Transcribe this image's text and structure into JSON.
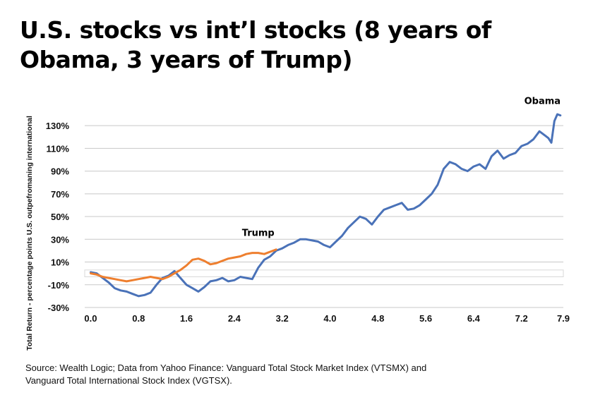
{
  "chart_data": {
    "type": "line",
    "title": "U.S. stocks vs int’l stocks (8 years of Obama, 3 years of Trump)",
    "ylabel": "Total Return - percentage points U.S. outpefromaning international",
    "xlabel": "",
    "ylim": [
      -30,
      140
    ],
    "xlim": [
      -0.1,
      7.9
    ],
    "y_ticks": [
      -30,
      -10,
      10,
      30,
      50,
      70,
      90,
      110,
      130
    ],
    "y_tick_labels": [
      "-30%",
      "-10%",
      "10%",
      "30%",
      "50%",
      "70%",
      "90%",
      "110%",
      "130%"
    ],
    "x_ticks": [
      0.0,
      0.8,
      1.6,
      2.4,
      3.2,
      4.0,
      4.8,
      5.6,
      6.4,
      7.2,
      7.9
    ],
    "x_tick_labels": [
      "0.0",
      "0.8",
      "1.6",
      "2.4",
      "3.2",
      "4.0",
      "4.8",
      "5.6",
      "6.4",
      "7.2",
      "7.9"
    ],
    "grid": true,
    "series": [
      {
        "name": "Obama",
        "color": "#4a72b8",
        "x": [
          0.0,
          0.1,
          0.2,
          0.3,
          0.4,
          0.5,
          0.6,
          0.7,
          0.8,
          0.9,
          1.0,
          1.1,
          1.2,
          1.3,
          1.4,
          1.5,
          1.6,
          1.7,
          1.8,
          1.9,
          2.0,
          2.1,
          2.2,
          2.3,
          2.4,
          2.5,
          2.6,
          2.7,
          2.8,
          2.9,
          3.0,
          3.1,
          3.2,
          3.3,
          3.4,
          3.5,
          3.6,
          3.7,
          3.8,
          3.9,
          4.0,
          4.1,
          4.2,
          4.3,
          4.4,
          4.5,
          4.6,
          4.7,
          4.8,
          4.9,
          5.0,
          5.1,
          5.2,
          5.3,
          5.4,
          5.5,
          5.6,
          5.7,
          5.8,
          5.9,
          6.0,
          6.1,
          6.2,
          6.3,
          6.4,
          6.5,
          6.6,
          6.7,
          6.8,
          6.9,
          7.0,
          7.1,
          7.2,
          7.3,
          7.4,
          7.5,
          7.6,
          7.65,
          7.7,
          7.75,
          7.8,
          7.85
        ],
        "values": [
          1,
          0,
          -4,
          -8,
          -13,
          -15,
          -16,
          -18,
          -20,
          -19,
          -17,
          -10,
          -4,
          -2,
          2,
          -4,
          -10,
          -13,
          -16,
          -12,
          -7,
          -6,
          -4,
          -7,
          -6,
          -3,
          -4,
          -5,
          5,
          12,
          15,
          20,
          22,
          25,
          27,
          30,
          30,
          29,
          28,
          25,
          23,
          28,
          33,
          40,
          45,
          50,
          48,
          43,
          50,
          56,
          58,
          60,
          62,
          56,
          57,
          60,
          65,
          70,
          78,
          92,
          98,
          96,
          92,
          90,
          94,
          96,
          92,
          103,
          108,
          101,
          104,
          106,
          112,
          114,
          118,
          125,
          121,
          119,
          115,
          134,
          140,
          139
        ]
      },
      {
        "name": "Trump",
        "color": "#ee7f2f",
        "x": [
          0.0,
          0.1,
          0.2,
          0.3,
          0.4,
          0.5,
          0.6,
          0.7,
          0.8,
          0.9,
          1.0,
          1.1,
          1.2,
          1.3,
          1.4,
          1.5,
          1.6,
          1.7,
          1.8,
          1.9,
          2.0,
          2.1,
          2.2,
          2.3,
          2.4,
          2.5,
          2.6,
          2.7,
          2.8,
          2.9,
          3.0,
          3.1
        ],
        "values": [
          0,
          -1,
          -3,
          -4,
          -5,
          -6,
          -7,
          -6,
          -5,
          -4,
          -3,
          -4,
          -5,
          -3,
          0,
          3,
          7,
          12,
          13,
          11,
          8,
          9,
          11,
          13,
          14,
          15,
          17,
          18,
          18,
          17,
          19,
          21
        ]
      }
    ],
    "annotations": [
      {
        "text": "Obama",
        "x": 7.55,
        "y": 149
      },
      {
        "text": "Trump",
        "x": 2.8,
        "y": 33
      }
    ]
  },
  "source": {
    "line1": "Source: Wealth Logic; Data from Yahoo Finance: Vanguard Total Stock Market Index (VTSMX) and",
    "line2": "Vanguard Total International Stock Index (VGTSX)."
  }
}
